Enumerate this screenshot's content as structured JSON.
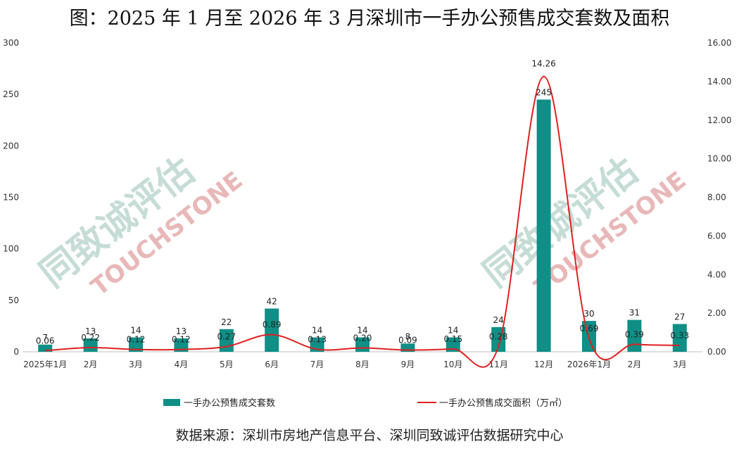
{
  "title": "图：2025 年 1 月至 2026 年 3 月深圳市一手办公预售成交套数及面积",
  "source": "数据来源：深圳市房地产信息平台、深圳同致诚评估数据研究中心",
  "watermark": {
    "cn": "同致诚评估",
    "en": "TOUCHSTONE"
  },
  "colors": {
    "bar": "#0f8f86",
    "line": "#e02020",
    "watermark": "#e8b8b8",
    "watermark_green": "#c6dcd6"
  },
  "chart_data": {
    "type": "bar",
    "categories": [
      "2025年1月",
      "2月",
      "3月",
      "4月",
      "5月",
      "6月",
      "7月",
      "8月",
      "9月",
      "10月",
      "11月",
      "12月",
      "2026年1月",
      "2月",
      "3月"
    ],
    "series": [
      {
        "name": "一手办公预售成交套数",
        "type": "bar",
        "axis": "left",
        "values": [
          7,
          13,
          14,
          13,
          22,
          42,
          14,
          14,
          8,
          14,
          24,
          245,
          30,
          31,
          27
        ],
        "labels": [
          "7",
          "13",
          "14",
          "13",
          "22",
          "42",
          "14",
          "14",
          "8",
          "14",
          "24",
          "245",
          "30",
          "31",
          "27"
        ]
      },
      {
        "name": "一手办公预售成交面积（万㎡）",
        "type": "line",
        "axis": "right",
        "values": [
          0.06,
          0.22,
          0.12,
          0.12,
          0.27,
          0.89,
          0.13,
          0.2,
          0.09,
          0.15,
          0.28,
          14.26,
          0.69,
          0.39,
          0.33
        ],
        "labels": [
          "0.06",
          "0.22",
          "0.12",
          "0.12",
          "0.27",
          "0.89",
          "0.13",
          "0.20",
          "0.09",
          "0.15",
          "0.28",
          "14.26",
          "0.69",
          "0.39",
          "0.33"
        ]
      }
    ],
    "ylim_left": [
      0,
      300
    ],
    "yticks_left": [
      "0",
      "50",
      "100",
      "150",
      "200",
      "250",
      "300"
    ],
    "ylim_right": [
      0,
      16
    ],
    "yticks_right": [
      "0.00",
      "2.00",
      "4.00",
      "6.00",
      "8.00",
      "10.00",
      "12.00",
      "14.00",
      "16.00"
    ],
    "grid": false,
    "legend": "bottom"
  }
}
